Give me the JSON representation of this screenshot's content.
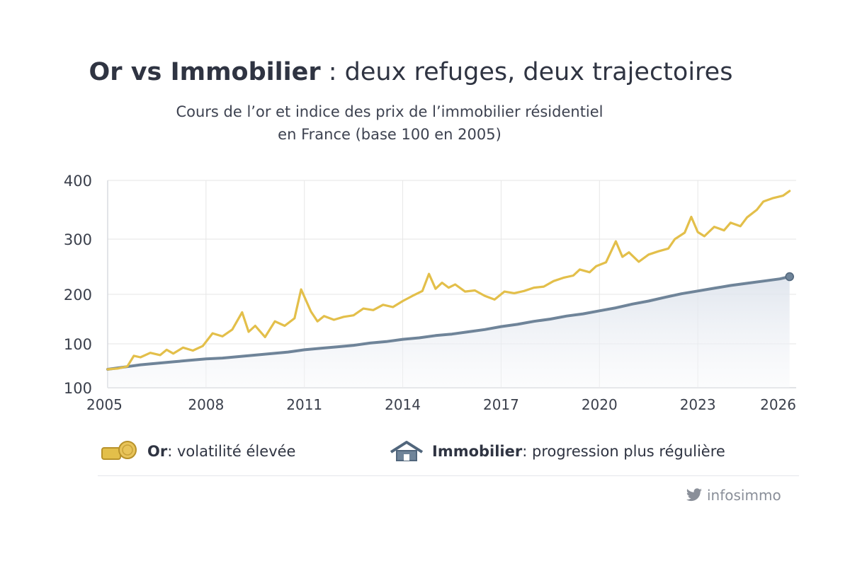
{
  "header": {
    "title_bold": "Or vs Immobilier",
    "title_rest": " : deux refuges, deux trajectoires",
    "subtitle_line1": "Cours de l’or et indice des prix de l’immobilier résidentiel",
    "subtitle_line2": "en France (base 100 en 2005)"
  },
  "legend": {
    "gold_bold": "Or",
    "gold_rest": " : volatilité élevée",
    "realestate_bold": "Immobilier",
    "realestate_rest": " : progression plus régulière"
  },
  "watermark": {
    "text": "infosimmo",
    "icon": "twitter-bird-icon"
  },
  "colors": {
    "gold": "#e3bf4a",
    "realestate": "#6f8499",
    "grid": "#e6e6e6",
    "area": "#e8ecf2"
  },
  "chart_data": {
    "type": "line",
    "title": "Or vs Immobilier : deux refuges, deux trajectoires",
    "x_ticks": [
      "2005",
      "2008",
      "2011",
      "2014",
      "2017",
      "2020",
      "2023",
      "2026"
    ],
    "y_ticks": [
      "100",
      "100",
      "200",
      "300",
      "400"
    ],
    "xlim": [
      2005,
      2026
    ],
    "grid": true,
    "legend_position": "bottom",
    "series": [
      {
        "name": "Or",
        "color": "#e3bf4a",
        "x": [
          2005.0,
          2005.3,
          2005.6,
          2005.8,
          2006.0,
          2006.3,
          2006.6,
          2006.8,
          2007.0,
          2007.3,
          2007.6,
          2007.9,
          2008.2,
          2008.5,
          2008.8,
          2009.1,
          2009.3,
          2009.5,
          2009.8,
          2010.1,
          2010.4,
          2010.7,
          2010.9,
          2011.2,
          2011.4,
          2011.6,
          2011.9,
          2012.2,
          2012.5,
          2012.8,
          2013.1,
          2013.4,
          2013.7,
          2014.0,
          2014.3,
          2014.6,
          2014.8,
          2015.0,
          2015.2,
          2015.4,
          2015.6,
          2015.9,
          2016.2,
          2016.5,
          2016.8,
          2017.1,
          2017.4,
          2017.7,
          2018.0,
          2018.3,
          2018.6,
          2018.9,
          2019.2,
          2019.4,
          2019.7,
          2019.9,
          2020.2,
          2020.5,
          2020.7,
          2020.9,
          2021.2,
          2021.5,
          2021.8,
          2022.1,
          2022.3,
          2022.6,
          2022.8,
          2023.0,
          2023.2,
          2023.5,
          2023.8,
          2024.0,
          2024.3,
          2024.5,
          2024.8,
          2025.0,
          2025.3,
          2025.6,
          2025.8
        ],
        "values": [
          100,
          101,
          104,
          118,
          116,
          122,
          119,
          126,
          121,
          129,
          125,
          131,
          148,
          144,
          153,
          176,
          150,
          158,
          143,
          164,
          158,
          168,
          209,
          177,
          164,
          171,
          166,
          170,
          172,
          181,
          179,
          186,
          183,
          191,
          198,
          206,
          237,
          210,
          221,
          212,
          218,
          205,
          207,
          198,
          193,
          205,
          202,
          206,
          212,
          214,
          224,
          230,
          234,
          245,
          240,
          251,
          258,
          296,
          268,
          276,
          259,
          272,
          278,
          283,
          300,
          311,
          338,
          312,
          305,
          321,
          315,
          328,
          322,
          337,
          350,
          364,
          370,
          374,
          382
        ]
      },
      {
        "name": "Immobilier",
        "color": "#6f8499",
        "x": [
          2005.0,
          2005.5,
          2006.0,
          2006.5,
          2007.0,
          2007.5,
          2008.0,
          2008.5,
          2009.0,
          2009.5,
          2010.0,
          2010.5,
          2011.0,
          2011.5,
          2012.0,
          2012.5,
          2013.0,
          2013.5,
          2014.0,
          2014.5,
          2015.0,
          2015.5,
          2016.0,
          2016.5,
          2017.0,
          2017.5,
          2018.0,
          2018.5,
          2019.0,
          2019.5,
          2020.0,
          2020.5,
          2021.0,
          2021.5,
          2022.0,
          2022.5,
          2023.0,
          2023.5,
          2024.0,
          2024.5,
          2025.0,
          2025.5,
          2025.8
        ],
        "values": [
          100,
          103,
          106,
          108,
          110,
          112,
          114,
          115,
          117,
          119,
          121,
          123,
          126,
          128,
          130,
          132,
          135,
          137,
          140,
          142,
          145,
          147,
          150,
          153,
          157,
          160,
          164,
          167,
          171,
          174,
          178,
          182,
          187,
          191,
          196,
          201,
          206,
          211,
          216,
          220,
          224,
          228,
          232
        ]
      }
    ]
  }
}
